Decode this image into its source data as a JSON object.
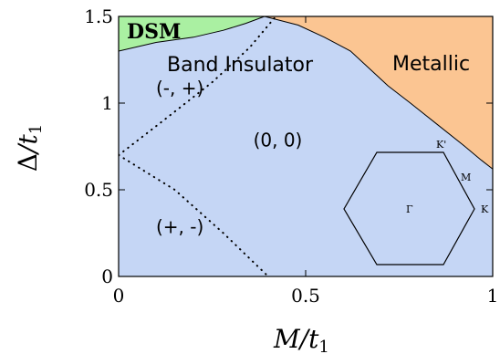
{
  "chart_data": {
    "type": "area",
    "title": "",
    "xlabel_base": "M",
    "xlabel_sub": "1",
    "ylabel_base": "Δ",
    "ylabel_sub": "1",
    "label_t": "t",
    "xlim": [
      0,
      1
    ],
    "ylim": [
      0,
      1.5
    ],
    "x_ticks": [
      {
        "value": 0,
        "label": "0"
      },
      {
        "value": 0.5,
        "label": "0.5"
      },
      {
        "value": 1,
        "label": "1"
      }
    ],
    "y_ticks": [
      {
        "value": 0,
        "label": "0"
      },
      {
        "value": 0.5,
        "label": "0.5"
      },
      {
        "value": 1,
        "label": "1"
      },
      {
        "value": 1.5,
        "label": "1.5"
      }
    ],
    "colors": {
      "band_insulator": "#c5d6f5",
      "metallic": "#fbc592",
      "dsm": "#aaf0a2"
    },
    "regions": {
      "dsm": {
        "label": "DSM",
        "points": [
          [
            0,
            1.3
          ],
          [
            0.1,
            1.35
          ],
          [
            0.2,
            1.38
          ],
          [
            0.28,
            1.42
          ],
          [
            0.34,
            1.46
          ],
          [
            0.39,
            1.5
          ],
          [
            0,
            1.5
          ]
        ]
      },
      "metallic": {
        "label": "Metallic",
        "points": [
          [
            0.39,
            1.5
          ],
          [
            0.48,
            1.45
          ],
          [
            0.55,
            1.38
          ],
          [
            0.62,
            1.3
          ],
          [
            0.67,
            1.2
          ],
          [
            0.72,
            1.1
          ],
          [
            0.78,
            1.0
          ],
          [
            0.85,
            0.88
          ],
          [
            0.92,
            0.76
          ],
          [
            0.97,
            0.67
          ],
          [
            1.0,
            0.62
          ],
          [
            1.0,
            1.5
          ]
        ]
      },
      "band_insulator": {
        "label": "Band Insulator"
      }
    },
    "dotted_lines": [
      {
        "name": "upper-boundary",
        "points": [
          [
            0,
            0.7
          ],
          [
            0.12,
            0.9
          ],
          [
            0.25,
            1.12
          ],
          [
            0.35,
            1.32
          ],
          [
            0.42,
            1.5
          ]
        ]
      },
      {
        "name": "lower-boundary",
        "points": [
          [
            0,
            0.7
          ],
          [
            0.15,
            0.5
          ],
          [
            0.28,
            0.25
          ],
          [
            0.4,
            0
          ]
        ]
      }
    ],
    "annotations": [
      {
        "text": "(-, +)",
        "x": 0.1,
        "y": 1.05
      },
      {
        "text": "(0, 0)",
        "x": 0.36,
        "y": 0.75
      },
      {
        "text": "(+, -)",
        "x": 0.1,
        "y": 0.25
      }
    ],
    "brillouin_zone": {
      "center_label": "Γ",
      "labels": [
        {
          "text": "K'",
          "pos": "top-right-vertex"
        },
        {
          "text": "M",
          "pos": "right-upper-edge-midpoint"
        },
        {
          "text": "K",
          "pos": "right-vertex"
        }
      ]
    }
  }
}
